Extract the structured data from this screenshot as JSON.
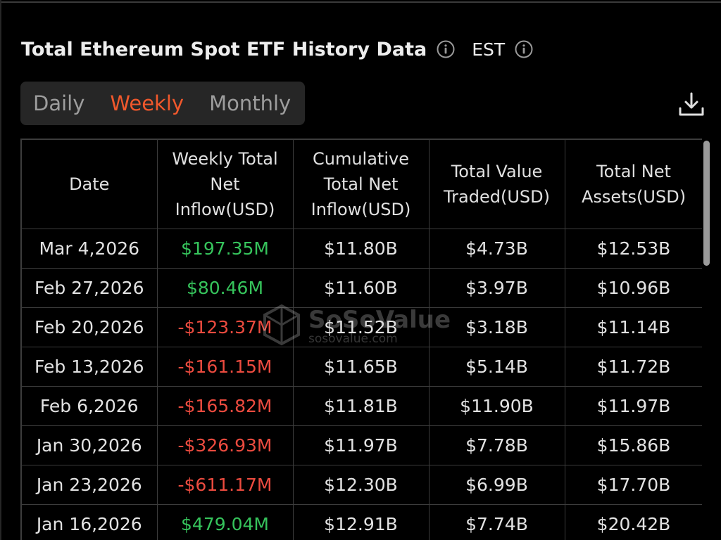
{
  "header": {
    "title": "Total Ethereum Spot ETF History Data",
    "timezone": "EST",
    "title_info_icon": "info-circle-icon",
    "timezone_info_icon": "info-circle-icon"
  },
  "tabs": [
    {
      "label": "Daily",
      "active": false
    },
    {
      "label": "Weekly",
      "active": true
    },
    {
      "label": "Monthly",
      "active": false
    }
  ],
  "toolbar": {
    "download_icon": "download-icon"
  },
  "table": {
    "columns": [
      "Date",
      "Weekly Total Net Inflow(USD)",
      "Cumulative Total Net Inflow(USD)",
      "Total Value Traded(USD)",
      "Total Net Assets(USD)"
    ],
    "rows": [
      [
        "Mar 4,2026",
        "$197.35M",
        "$11.80B",
        "$4.73B",
        "$12.53B"
      ],
      [
        "Feb 27,2026",
        "$80.46M",
        "$11.60B",
        "$3.97B",
        "$10.96B"
      ],
      [
        "Feb 20,2026",
        "-$123.37M",
        "$11.52B",
        "$3.18B",
        "$11.14B"
      ],
      [
        "Feb 13,2026",
        "-$161.15M",
        "$11.65B",
        "$5.14B",
        "$11.72B"
      ],
      [
        "Feb 6,2026",
        "-$165.82M",
        "$11.81B",
        "$11.90B",
        "$11.97B"
      ],
      [
        "Jan 30,2026",
        "-$326.93M",
        "$11.97B",
        "$7.78B",
        "$15.86B"
      ],
      [
        "Jan 23,2026",
        "-$611.17M",
        "$12.30B",
        "$6.99B",
        "$17.70B"
      ],
      [
        "Jan 16,2026",
        "$479.04M",
        "$12.91B",
        "$7.74B",
        "$20.42B"
      ]
    ]
  },
  "watermark": {
    "brand": "SoSoValue",
    "url": "sosovalue.com"
  },
  "colors": {
    "background": "#000000",
    "accent": "#f0582c",
    "positive": "#36c45c",
    "negative": "#ec4b3f",
    "tab_bar": "#262626",
    "grid": "#3c3c3c"
  }
}
